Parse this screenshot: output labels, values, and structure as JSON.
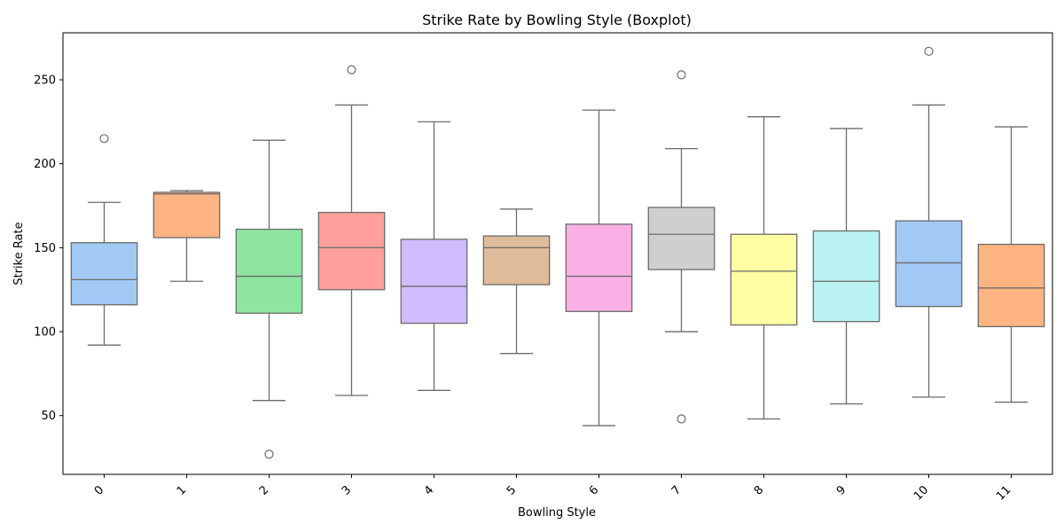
{
  "chart_data": {
    "type": "boxplot",
    "title": "Strike Rate by Bowling Style (Boxplot)",
    "xlabel": "Bowling Style",
    "ylabel": "Strike Rate",
    "ylim": [
      15,
      278
    ],
    "yticks": [
      50,
      100,
      150,
      200,
      250
    ],
    "grid": false,
    "categories": [
      "0",
      "1",
      "2",
      "3",
      "4",
      "5",
      "6",
      "7",
      "8",
      "9",
      "10",
      "11"
    ],
    "boxes": [
      {
        "category": "0",
        "whisker_low": 92,
        "q1": 116,
        "median": 131,
        "q3": 153,
        "whisker_high": 177,
        "outliers": [
          215
        ],
        "color": "#a1c9f4"
      },
      {
        "category": "1",
        "whisker_low": 130,
        "q1": 156,
        "median": 182,
        "q3": 183,
        "whisker_high": 184,
        "outliers": [],
        "color": "#ffb482"
      },
      {
        "category": "2",
        "whisker_low": 59,
        "q1": 111,
        "median": 133,
        "q3": 161,
        "whisker_high": 214,
        "outliers": [
          27
        ],
        "color": "#8de5a1"
      },
      {
        "category": "3",
        "whisker_low": 62,
        "q1": 125,
        "median": 150,
        "q3": 171,
        "whisker_high": 235,
        "outliers": [
          256
        ],
        "color": "#ff9f9b"
      },
      {
        "category": "4",
        "whisker_low": 65,
        "q1": 105,
        "median": 127,
        "q3": 155,
        "whisker_high": 225,
        "outliers": [],
        "color": "#d0bbff"
      },
      {
        "category": "5",
        "whisker_low": 87,
        "q1": 128,
        "median": 150,
        "q3": 157,
        "whisker_high": 173,
        "outliers": [],
        "color": "#debb9b"
      },
      {
        "category": "6",
        "whisker_low": 44,
        "q1": 112,
        "median": 133,
        "q3": 164,
        "whisker_high": 232,
        "outliers": [],
        "color": "#fab0e4"
      },
      {
        "category": "7",
        "whisker_low": 100,
        "q1": 137,
        "median": 158,
        "q3": 174,
        "whisker_high": 209,
        "outliers": [
          253,
          48
        ],
        "color": "#cfcfcf"
      },
      {
        "category": "8",
        "whisker_low": 48,
        "q1": 104,
        "median": 136,
        "q3": 158,
        "whisker_high": 228,
        "outliers": [],
        "color": "#fffea3"
      },
      {
        "category": "9",
        "whisker_low": 57,
        "q1": 106,
        "median": 130,
        "q3": 160,
        "whisker_high": 221,
        "outliers": [],
        "color": "#b9f2f0"
      },
      {
        "category": "10",
        "whisker_low": 61,
        "q1": 115,
        "median": 141,
        "q3": 166,
        "whisker_high": 235,
        "outliers": [
          267
        ],
        "color": "#a1c9f4"
      },
      {
        "category": "11",
        "whisker_low": 58,
        "q1": 103,
        "median": 126,
        "q3": 152,
        "whisker_high": 222,
        "outliers": [],
        "color": "#ffb482"
      }
    ]
  }
}
